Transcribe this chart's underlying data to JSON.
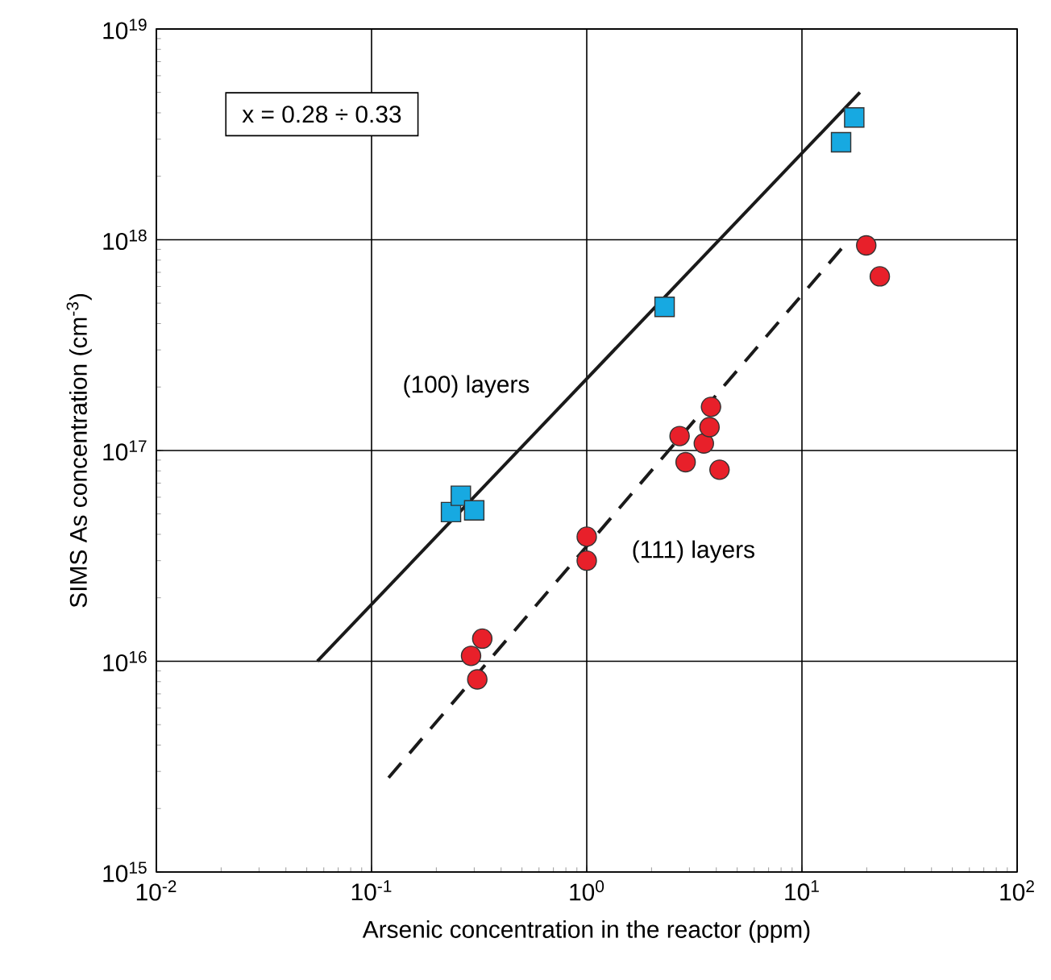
{
  "chart_data": {
    "type": "scatter",
    "xlabel": "Arsenic concentration in the reactor (ppm)",
    "ylabel": "SIMS As concentration (cm$^{-3}$)",
    "log": "xy",
    "grid": true,
    "xlim": [
      0.01,
      100
    ],
    "ylim": [
      1000000000000000.0,
      1e+19
    ],
    "xticks": [
      {
        "value": 0.01,
        "label": "10$^{-2}$"
      },
      {
        "value": 0.1,
        "label": "10$^{-1}$"
      },
      {
        "value": 1,
        "label": "10$^{0}$"
      },
      {
        "value": 10,
        "label": "10$^{1}$"
      },
      {
        "value": 100,
        "label": "10$^{2}$"
      }
    ],
    "yticks": [
      {
        "value": 1000000000000000.0,
        "label": "10$^{15}$"
      },
      {
        "value": 1e+16,
        "label": "10$^{16}$"
      },
      {
        "value": 1e+17,
        "label": "10$^{17}$"
      },
      {
        "value": 1e+18,
        "label": "10$^{18}$"
      },
      {
        "value": 1e+19,
        "label": "10$^{19}$"
      }
    ],
    "series": [
      {
        "type": "line",
        "color": "#1a1a1a",
        "line_style": "solid",
        "marker": "none",
        "x": [
          0.056,
          18.6
        ],
        "values": [
          1e+16,
          5e+18
        ]
      },
      {
        "type": "line",
        "color": "#1a1a1a",
        "line_style": "dashed",
        "marker": "none",
        "x": [
          0.12,
          15.6
        ],
        "values": [
          2800000000000000.0,
          9.3e+17
        ]
      },
      {
        "type": "scatter",
        "color": "#17a9e1",
        "marker": "square",
        "x": [
          0.234,
          0.26,
          0.3,
          2.3,
          15.2,
          17.5
        ],
        "values": [
          5.1e+16,
          6.1e+16,
          5.2e+16,
          4.8e+17,
          2.9e+18,
          3.8e+18
        ]
      },
      {
        "type": "scatter",
        "color": "#e8202a",
        "marker": "circle",
        "x": [
          0.327,
          0.29,
          0.31,
          1.0,
          1.0,
          2.7,
          2.88,
          3.5,
          3.72,
          3.78,
          4.14,
          19.9,
          23
        ],
        "values": [
          1.28e+16,
          1.06e+16,
          8200000000000000.0,
          3.9e+16,
          3e+16,
          1.17e+17,
          8.8e+16,
          1.08e+17,
          1.29e+17,
          1.61e+17,
          8.1e+16,
          9.4e+17,
          6.7e+17
        ]
      }
    ],
    "annotations": [
      "x = 0.28 ÷ 0.33",
      "(100) layers",
      "(111) layers"
    ]
  }
}
